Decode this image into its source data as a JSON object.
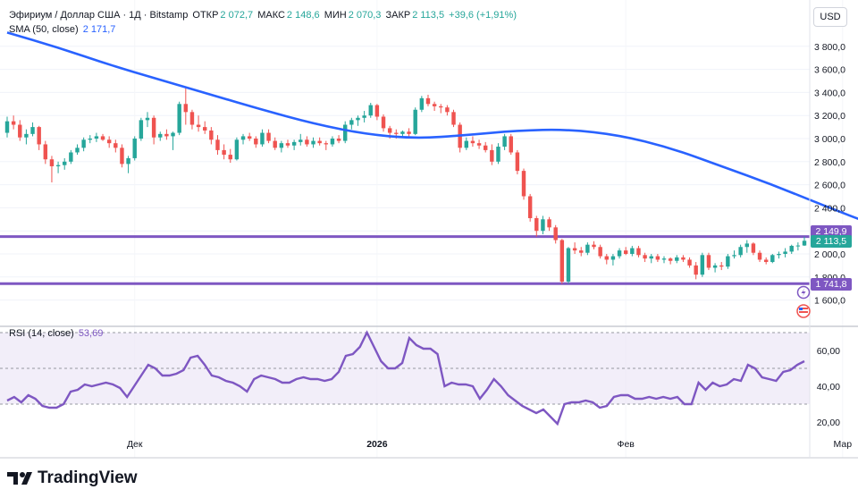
{
  "header": {
    "symbol": "Эфириум / Доллар США · 1Д · Bitstamp",
    "open_label": "ОТКР",
    "open_value": "2 072,7",
    "high_label": "МАКС",
    "high_value": "2 148,6",
    "low_label": "МИН",
    "low_value": "2 070,3",
    "close_label": "ЗАКР",
    "close_value": "2 113,5",
    "change": "+39,6 (+1,91%)",
    "sma_label": "SMA (50, close)",
    "sma_value": "2 171,7",
    "rsi_label": "RSI (14, close)",
    "rsi_value": "53,69"
  },
  "currency_button": "USD",
  "brand": "TradingView",
  "colors": {
    "up": "#26a69a",
    "down": "#ef5350",
    "sma": "#2962ff",
    "levels": "#7e57c2",
    "rsi": "#7e57c2",
    "rsi_band": "#ede7f6",
    "text": "#131722",
    "muted": "#787b86"
  },
  "chart_data": [
    {
      "type": "candlestick",
      "title": "Эфириум / Доллар США · 1Д · Bitstamp",
      "ylim": [
        1450,
        3950
      ],
      "y_ticks": [
        "3 800,0",
        "3 600,0",
        "3 400,0",
        "3 200,0",
        "3 000,0",
        "2 800,0",
        "2 600,0",
        "2 400,0",
        "2 200,0",
        "2 000,0",
        "1 800,0",
        "1 600,0"
      ],
      "y_tick_values": [
        3800,
        3600,
        3400,
        3200,
        3000,
        2800,
        2600,
        2400,
        2200,
        2000,
        1800,
        1600
      ],
      "x_ticks": [
        "Дек",
        "2026",
        "Фев",
        "Мар"
      ],
      "x_tick_index": [
        20,
        58,
        97,
        131
      ],
      "candles": [
        [
          3050,
          3190,
          3010,
          3150
        ],
        [
          3150,
          3200,
          3080,
          3120
        ],
        [
          3120,
          3160,
          2980,
          3010
        ],
        [
          3010,
          3080,
          2950,
          3040
        ],
        [
          3040,
          3140,
          3020,
          3100
        ],
        [
          3100,
          3110,
          2900,
          2950
        ],
        [
          2950,
          2980,
          2780,
          2820
        ],
        [
          2820,
          2850,
          2620,
          2760
        ],
        [
          2760,
          2800,
          2700,
          2770
        ],
        [
          2770,
          2830,
          2730,
          2800
        ],
        [
          2800,
          2900,
          2780,
          2880
        ],
        [
          2880,
          2950,
          2860,
          2920
        ],
        [
          2920,
          3010,
          2890,
          2990
        ],
        [
          2990,
          3030,
          2960,
          3000
        ],
        [
          3000,
          3050,
          2970,
          3020
        ],
        [
          3020,
          3040,
          2980,
          2990
        ],
        [
          2990,
          3020,
          2920,
          2960
        ],
        [
          2960,
          2990,
          2880,
          2920
        ],
        [
          2920,
          2950,
          2750,
          2780
        ],
        [
          2780,
          2850,
          2700,
          2830
        ],
        [
          2830,
          3020,
          2810,
          3000
        ],
        [
          3000,
          3180,
          2980,
          3160
        ],
        [
          3160,
          3230,
          3100,
          3180
        ],
        [
          3180,
          3200,
          2950,
          3010
        ],
        [
          3010,
          3060,
          2980,
          3040
        ],
        [
          3040,
          3080,
          2990,
          3020
        ],
        [
          3020,
          3060,
          2900,
          3050
        ],
        [
          3050,
          3320,
          3030,
          3300
        ],
        [
          3300,
          3440,
          3120,
          3230
        ],
        [
          3230,
          3250,
          3080,
          3120
        ],
        [
          3120,
          3200,
          3060,
          3100
        ],
        [
          3100,
          3150,
          3040,
          3070
        ],
        [
          3070,
          3100,
          2950,
          2990
        ],
        [
          2990,
          3030,
          2860,
          2900
        ],
        [
          2900,
          2950,
          2820,
          2860
        ],
        [
          2860,
          2910,
          2790,
          2820
        ],
        [
          2820,
          3010,
          2810,
          2990
        ],
        [
          2990,
          3040,
          2950,
          3020
        ],
        [
          3020,
          3050,
          2980,
          3000
        ],
        [
          3000,
          3020,
          2920,
          2950
        ],
        [
          2950,
          3080,
          2930,
          3050
        ],
        [
          3050,
          3080,
          2960,
          2980
        ],
        [
          2980,
          3010,
          2900,
          2920
        ],
        [
          2920,
          2980,
          2880,
          2960
        ],
        [
          2960,
          2990,
          2920,
          2940
        ],
        [
          2940,
          2990,
          2900,
          2970
        ],
        [
          2970,
          3040,
          2940,
          2990
        ],
        [
          2990,
          3020,
          2930,
          2950
        ],
        [
          2950,
          3010,
          2920,
          2980
        ],
        [
          2980,
          3010,
          2940,
          2960
        ],
        [
          2960,
          2980,
          2900,
          2950
        ],
        [
          2950,
          3020,
          2930,
          3000
        ],
        [
          3000,
          3030,
          2960,
          2980
        ],
        [
          2980,
          3150,
          2960,
          3120
        ],
        [
          3120,
          3180,
          3080,
          3160
        ],
        [
          3160,
          3200,
          3110,
          3180
        ],
        [
          3180,
          3240,
          3140,
          3200
        ],
        [
          3200,
          3310,
          3180,
          3290
        ],
        [
          3290,
          3300,
          3160,
          3190
        ],
        [
          3190,
          3210,
          3060,
          3090
        ],
        [
          3090,
          3110,
          3000,
          3050
        ],
        [
          3050,
          3080,
          3000,
          3040
        ],
        [
          3040,
          3070,
          3010,
          3060
        ],
        [
          3060,
          3090,
          3020,
          3040
        ],
        [
          3040,
          3270,
          3030,
          3250
        ],
        [
          3250,
          3370,
          3230,
          3350
        ],
        [
          3350,
          3380,
          3280,
          3300
        ],
        [
          3300,
          3320,
          3240,
          3280
        ],
        [
          3280,
          3300,
          3220,
          3270
        ],
        [
          3270,
          3290,
          3200,
          3230
        ],
        [
          3230,
          3250,
          3100,
          3120
        ],
        [
          3120,
          3140,
          2880,
          2920
        ],
        [
          2920,
          3010,
          2900,
          2980
        ],
        [
          2980,
          3020,
          2930,
          2960
        ],
        [
          2960,
          2990,
          2910,
          2940
        ],
        [
          2940,
          2970,
          2880,
          2900
        ],
        [
          2900,
          2950,
          2770,
          2800
        ],
        [
          2800,
          2960,
          2780,
          2930
        ],
        [
          2930,
          3040,
          2900,
          3020
        ],
        [
          3020,
          3040,
          2860,
          2880
        ],
        [
          2880,
          2900,
          2690,
          2720
        ],
        [
          2720,
          2740,
          2470,
          2500
        ],
        [
          2500,
          2520,
          2280,
          2310
        ],
        [
          2310,
          2330,
          2150,
          2200
        ],
        [
          2200,
          2330,
          2170,
          2300
        ],
        [
          2300,
          2320,
          2200,
          2230
        ],
        [
          2230,
          2250,
          2090,
          2120
        ],
        [
          2120,
          2130,
          1740,
          1760
        ],
        [
          1760,
          2060,
          1740,
          2050
        ],
        [
          2050,
          2100,
          2000,
          2030
        ],
        [
          2030,
          2060,
          1980,
          2010
        ],
        [
          2010,
          2100,
          1990,
          2080
        ],
        [
          2080,
          2110,
          2040,
          2060
        ],
        [
          2060,
          2080,
          1960,
          1980
        ],
        [
          1980,
          2000,
          1910,
          1950
        ],
        [
          1950,
          2000,
          1900,
          1980
        ],
        [
          1980,
          2050,
          1960,
          2030
        ],
        [
          2030,
          2060,
          1990,
          2000
        ],
        [
          2000,
          2070,
          1980,
          2050
        ],
        [
          2050,
          2070,
          1970,
          1990
        ],
        [
          1990,
          2010,
          1930,
          1960
        ],
        [
          1960,
          2000,
          1920,
          1980
        ],
        [
          1980,
          2000,
          1930,
          1950
        ],
        [
          1950,
          1980,
          1920,
          1960
        ],
        [
          1960,
          1970,
          1910,
          1940
        ],
        [
          1940,
          1990,
          1920,
          1970
        ],
        [
          1970,
          1990,
          1930,
          1950
        ],
        [
          1950,
          1970,
          1880,
          1900
        ],
        [
          1900,
          1930,
          1780,
          1820
        ],
        [
          1820,
          2010,
          1800,
          1990
        ],
        [
          1990,
          2010,
          1860,
          1880
        ],
        [
          1880,
          1920,
          1840,
          1900
        ],
        [
          1900,
          1930,
          1860,
          1890
        ],
        [
          1890,
          2000,
          1870,
          1980
        ],
        [
          1980,
          2030,
          1960,
          1990
        ],
        [
          1990,
          2080,
          1970,
          2060
        ],
        [
          2060,
          2120,
          2010,
          2090
        ],
        [
          2090,
          2100,
          1990,
          2010
        ],
        [
          2010,
          2030,
          1930,
          1950
        ],
        [
          1950,
          1970,
          1910,
          1930
        ],
        [
          1930,
          2000,
          1920,
          1990
        ],
        [
          1990,
          2020,
          1960,
          2000
        ],
        [
          2000,
          2050,
          1970,
          2020
        ],
        [
          2020,
          2080,
          2000,
          2070
        ],
        [
          2070,
          2100,
          2030,
          2073
        ],
        [
          2073,
          2149,
          2070,
          2114
        ]
      ],
      "sma": {
        "name": "SMA (50, close)",
        "values": [
          [
            0,
            3920
          ],
          [
            8,
            3790
          ],
          [
            16,
            3640
          ],
          [
            24,
            3510
          ],
          [
            32,
            3380
          ],
          [
            40,
            3250
          ],
          [
            48,
            3130
          ],
          [
            56,
            3040
          ],
          [
            64,
            3000
          ],
          [
            72,
            3030
          ],
          [
            80,
            3070
          ],
          [
            88,
            3080
          ],
          [
            96,
            3030
          ],
          [
            104,
            2920
          ],
          [
            112,
            2760
          ],
          [
            120,
            2600
          ],
          [
            128,
            2420
          ],
          [
            136,
            2250
          ],
          [
            140,
            2160
          ]
        ]
      },
      "levels": [
        {
          "value": 2149.9,
          "label": "2 149,9"
        },
        {
          "value": 1741.8,
          "label": "1 741,8"
        }
      ],
      "last_price": {
        "value": 2113.5,
        "label": "2 113,5"
      }
    },
    {
      "type": "line",
      "title": "RSI (14, close)",
      "ylim": [
        15,
        75
      ],
      "y_ticks": [
        "60,00",
        "40,00",
        "20,00"
      ],
      "y_tick_values": [
        60,
        40,
        20
      ],
      "band": [
        30,
        70
      ],
      "series": [
        {
          "name": "RSI (14, close)",
          "values": [
            32,
            34,
            31,
            35,
            33,
            29,
            28,
            28,
            30,
            37,
            38,
            41,
            40,
            41,
            42,
            41,
            39,
            34,
            40,
            46,
            52,
            50,
            46,
            46,
            47,
            49,
            56,
            57,
            52,
            46,
            45,
            43,
            42,
            40,
            37,
            44,
            46,
            45,
            44,
            42,
            42,
            44,
            45,
            44,
            44,
            43,
            44,
            48,
            57,
            58,
            62,
            70,
            62,
            54,
            50,
            50,
            53,
            67,
            63,
            61,
            61,
            58,
            40,
            42,
            41,
            41,
            40,
            33,
            38,
            44,
            40,
            35,
            32,
            29,
            27,
            25,
            27,
            23,
            19,
            30,
            31,
            31,
            32,
            31,
            28,
            29,
            34,
            35,
            35,
            33,
            33,
            34,
            33,
            34,
            33,
            34,
            30,
            30,
            42,
            38,
            42,
            40,
            41,
            44,
            43,
            52,
            50,
            45,
            44,
            43,
            48,
            49,
            52,
            54
          ]
        }
      ]
    }
  ]
}
